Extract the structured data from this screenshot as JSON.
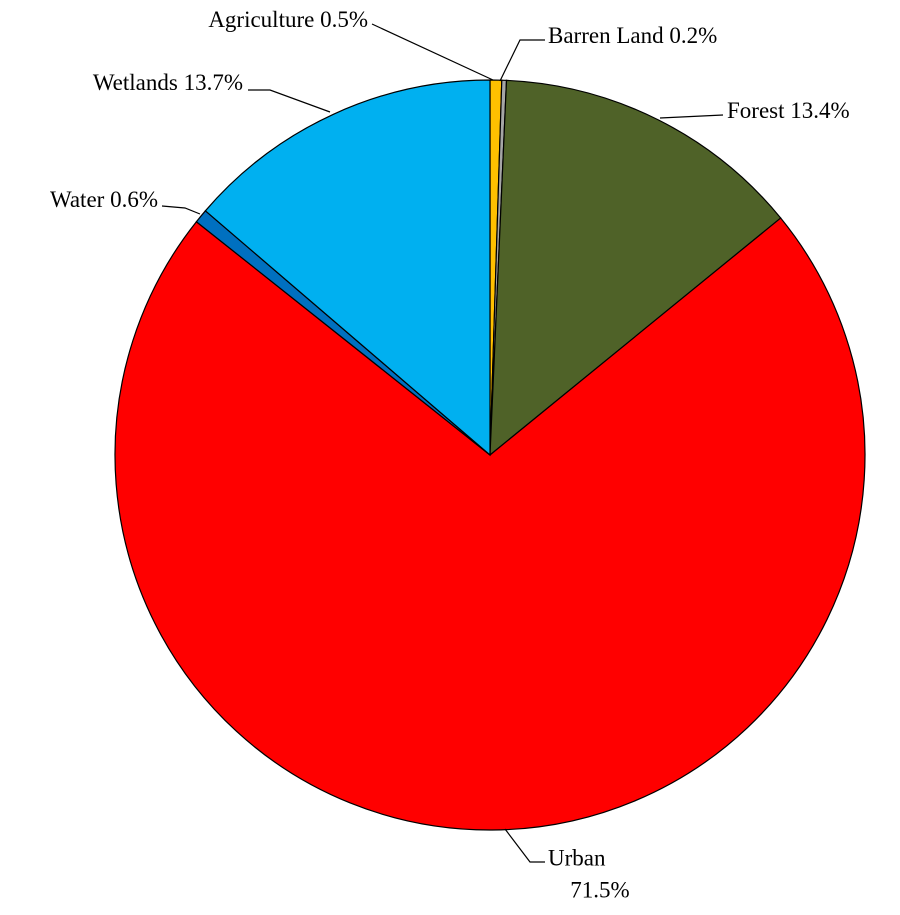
{
  "chart_data": {
    "type": "pie",
    "categories": [
      "Agriculture",
      "Barren Land",
      "Forest",
      "Urban",
      "Water",
      "Wetlands"
    ],
    "values": [
      0.5,
      0.2,
      13.4,
      71.5,
      0.6,
      13.7
    ],
    "value_labels": [
      "0.5%",
      "0.2%",
      "13.4%",
      "71.5%",
      "0.6%",
      "13.7%"
    ],
    "colors": [
      "#ffc000",
      "#a6a6a6",
      "#4f6228",
      "#ff0000",
      "#0070c0",
      "#00b0f0"
    ]
  }
}
